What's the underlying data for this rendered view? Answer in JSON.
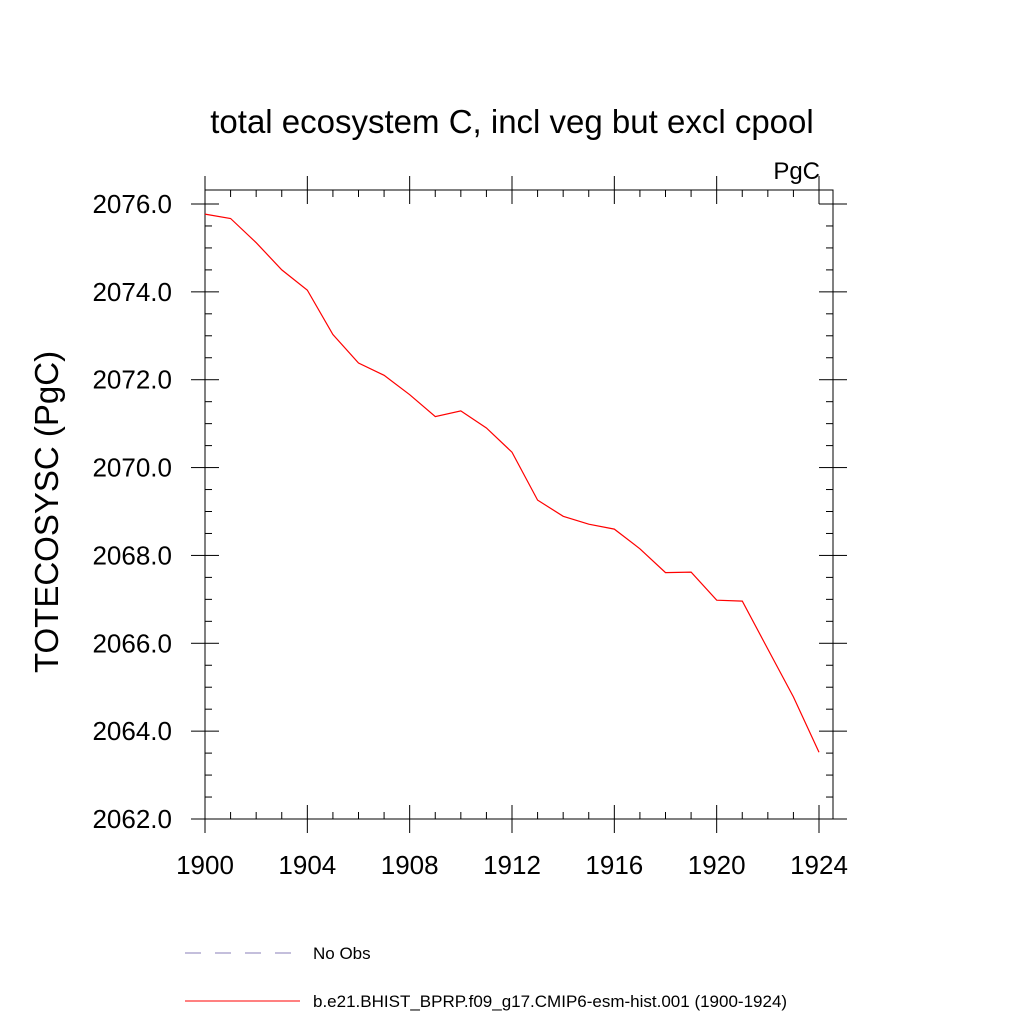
{
  "chart_data": {
    "type": "line",
    "title": "total ecosystem C, incl veg but excl cpool",
    "units_label": "PgC",
    "xlabel": "",
    "ylabel": "TOTECOSYSC  (PgC)",
    "xlim": [
      1900,
      1924
    ],
    "ylim": [
      2062.0,
      2076.0
    ],
    "x_ticks": [
      "1900",
      "1904",
      "1908",
      "1912",
      "1916",
      "1920",
      "1924"
    ],
    "y_ticks": [
      "2062.0",
      "2064.0",
      "2066.0",
      "2068.0",
      "2070.0",
      "2072.0",
      "2074.0",
      "2076.0"
    ],
    "grid": false,
    "series": [
      {
        "name": "b.e21.BHIST_BPRP.f09_g17.CMIP6-esm-hist.001 (1900-1924)",
        "color": "#ff0000",
        "dash": "solid",
        "x": [
          1900,
          1901,
          1902,
          1903,
          1904,
          1905,
          1906,
          1907,
          1908,
          1909,
          1910,
          1911,
          1912,
          1913,
          1914,
          1915,
          1916,
          1917,
          1918,
          1919,
          1920,
          1921,
          1922,
          1923,
          1924
        ],
        "values": [
          2075.77,
          2075.67,
          2075.12,
          2074.5,
          2074.04,
          2073.03,
          2072.38,
          2072.1,
          2071.66,
          2071.16,
          2071.29,
          2070.9,
          2070.35,
          2069.26,
          2068.89,
          2068.71,
          2068.6,
          2068.15,
          2067.61,
          2067.62,
          2066.98,
          2066.96,
          2065.87,
          2064.78,
          2063.52
        ]
      }
    ],
    "legend": [
      {
        "label": "No Obs",
        "color": "#8a7fb8",
        "dash": "dashed"
      },
      {
        "label": "b.e21.BHIST_BPRP.f09_g17.CMIP6-esm-hist.001 (1900-1924)",
        "color": "#ff0000",
        "dash": "solid"
      }
    ],
    "legend_position": "bottom"
  }
}
